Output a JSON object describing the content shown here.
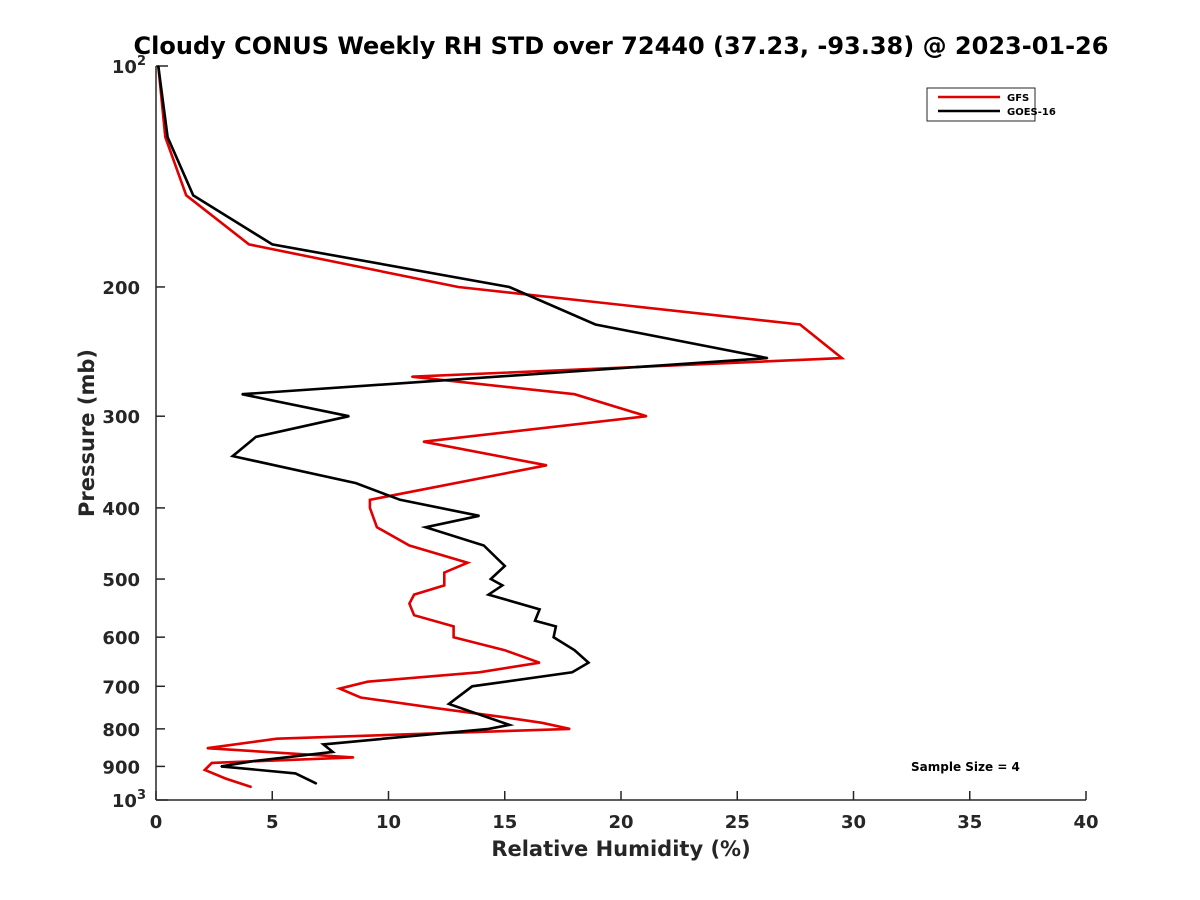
{
  "chart_data": {
    "type": "line",
    "title": "Cloudy CONUS Weekly RH STD over 72440 (37.23, -93.38) @ 2023-01-26",
    "xlabel": "Relative Humidity (%)",
    "ylabel": "Pressure (mb)",
    "xlim": [
      0,
      40
    ],
    "ylim": [
      1000,
      100
    ],
    "y_scale": "log",
    "y_reversed": true,
    "grid": false,
    "legend_position": "top-right",
    "x_ticks": [
      0,
      5,
      10,
      15,
      20,
      25,
      30,
      35,
      40
    ],
    "x_tick_labels": [
      "0",
      "5",
      "10",
      "15",
      "20",
      "25",
      "30",
      "35",
      "40"
    ],
    "y_ticks": [
      200,
      300,
      400,
      500,
      600,
      700,
      800,
      900
    ],
    "y_tick_labels": [
      "200",
      "300",
      "400",
      "500",
      "600",
      "700",
      "800",
      "900"
    ],
    "y_power_ticks": [
      {
        "value": 100,
        "base": "10",
        "exp": "2"
      },
      {
        "value": 1000,
        "base": "10",
        "exp": "3"
      }
    ],
    "annotation": "Sample Size = 4",
    "series": [
      {
        "name": "GFS",
        "color": "#e00000",
        "points": [
          [
            0.1,
            100
          ],
          [
            0.4,
            125
          ],
          [
            1.3,
            150
          ],
          [
            4.0,
            175
          ],
          [
            13.0,
            200
          ],
          [
            27.7,
            225
          ],
          [
            29.5,
            250
          ],
          [
            11.0,
            265
          ],
          [
            18.0,
            280
          ],
          [
            21.1,
            300
          ],
          [
            11.5,
            325
          ],
          [
            16.8,
            350
          ],
          [
            9.2,
            390
          ],
          [
            9.2,
            400
          ],
          [
            9.5,
            425
          ],
          [
            10.9,
            450
          ],
          [
            13.4,
            475
          ],
          [
            12.4,
            490
          ],
          [
            12.4,
            510
          ],
          [
            11.1,
            525
          ],
          [
            10.9,
            540
          ],
          [
            11.1,
            560
          ],
          [
            12.8,
            580
          ],
          [
            12.8,
            600
          ],
          [
            15.0,
            625
          ],
          [
            16.5,
            650
          ],
          [
            13.9,
            670
          ],
          [
            9.1,
            690
          ],
          [
            7.9,
            705
          ],
          [
            8.8,
            725
          ],
          [
            12.1,
            750
          ],
          [
            14.8,
            770
          ],
          [
            16.6,
            785
          ],
          [
            17.8,
            800
          ],
          [
            5.2,
            825
          ],
          [
            2.2,
            850
          ],
          [
            8.5,
            875
          ],
          [
            2.4,
            890
          ],
          [
            2.1,
            910
          ],
          [
            3.0,
            935
          ],
          [
            4.1,
            960
          ]
        ]
      },
      {
        "name": "GOES-16",
        "color": "#000000",
        "points": [
          [
            0.1,
            100
          ],
          [
            0.5,
            125
          ],
          [
            1.6,
            150
          ],
          [
            5.0,
            175
          ],
          [
            15.2,
            200
          ],
          [
            18.9,
            225
          ],
          [
            26.3,
            250
          ],
          [
            3.7,
            280
          ],
          [
            8.3,
            300
          ],
          [
            4.3,
            320
          ],
          [
            3.3,
            340
          ],
          [
            8.6,
            370
          ],
          [
            10.5,
            390
          ],
          [
            13.9,
            410
          ],
          [
            11.6,
            425
          ],
          [
            14.1,
            450
          ],
          [
            15.0,
            480
          ],
          [
            14.4,
            500
          ],
          [
            14.9,
            510
          ],
          [
            14.3,
            525
          ],
          [
            16.5,
            550
          ],
          [
            16.3,
            570
          ],
          [
            17.2,
            580
          ],
          [
            17.1,
            600
          ],
          [
            18.0,
            625
          ],
          [
            18.6,
            650
          ],
          [
            17.9,
            670
          ],
          [
            13.6,
            700
          ],
          [
            12.6,
            740
          ],
          [
            15.2,
            790
          ],
          [
            14.3,
            800
          ],
          [
            7.2,
            840
          ],
          [
            7.6,
            860
          ],
          [
            4.2,
            885
          ],
          [
            2.8,
            900
          ],
          [
            6.0,
            920
          ],
          [
            6.9,
            950
          ]
        ]
      }
    ]
  }
}
